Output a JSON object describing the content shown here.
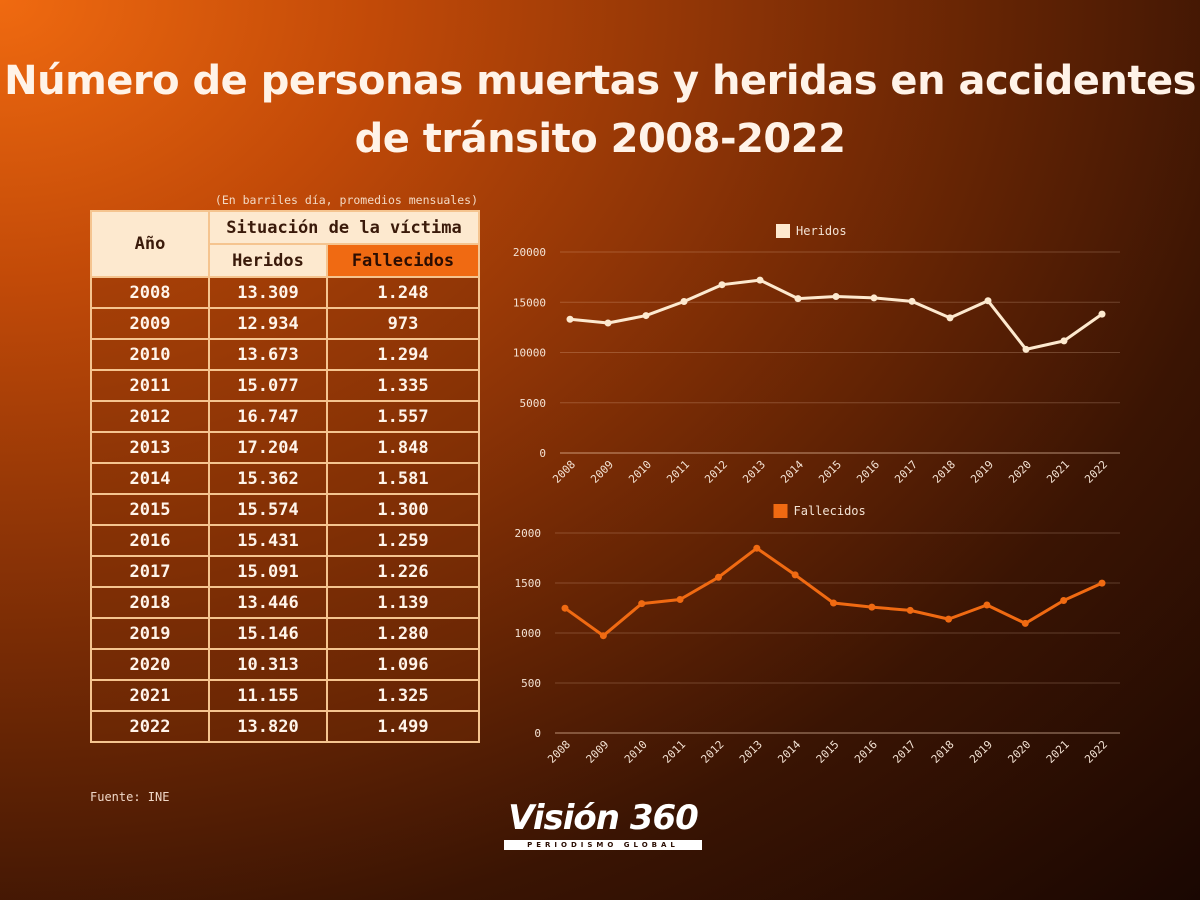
{
  "title": "Número de personas muertas y heridas en accidentes de tránsito 2008-2022",
  "note": "(En barriles día, promedios mensuales)",
  "source": "Fuente: INE",
  "logo": {
    "main": "Visión 360",
    "sub": "PERIODISMO GLOBAL"
  },
  "table": {
    "year_header": "Año",
    "group_header": "Situación de la víctima",
    "col_heridos": "Heridos",
    "col_fallecidos": "Fallecidos",
    "rows": [
      [
        "2008",
        "13.309",
        "1.248"
      ],
      [
        "2009",
        "12.934",
        "973"
      ],
      [
        "2010",
        "13.673",
        "1.294"
      ],
      [
        "2011",
        "15.077",
        "1.335"
      ],
      [
        "2012",
        "16.747",
        "1.557"
      ],
      [
        "2013",
        "17.204",
        "1.848"
      ],
      [
        "2014",
        "15.362",
        "1.581"
      ],
      [
        "2015",
        "15.574",
        "1.300"
      ],
      [
        "2016",
        "15.431",
        "1.259"
      ],
      [
        "2017",
        "15.091",
        "1.226"
      ],
      [
        "2018",
        "13.446",
        "1.139"
      ],
      [
        "2019",
        "15.146",
        "1.280"
      ],
      [
        "2020",
        "10.313",
        "1.096"
      ],
      [
        "2021",
        "11.155",
        "1.325"
      ],
      [
        "2022",
        "13.820",
        "1.499"
      ]
    ]
  },
  "chart_data": [
    {
      "type": "line",
      "series_name": "Heridos",
      "color": "#fde9cf",
      "categories": [
        "2008",
        "2009",
        "2010",
        "2011",
        "2012",
        "2013",
        "2014",
        "2015",
        "2016",
        "2017",
        "2018",
        "2019",
        "2020",
        "2021",
        "2022"
      ],
      "values": [
        13309,
        12934,
        13673,
        15077,
        16747,
        17204,
        15362,
        15574,
        15431,
        15091,
        13446,
        15146,
        10313,
        11155,
        13820
      ],
      "yticks": [
        0,
        5000,
        10000,
        15000,
        20000
      ],
      "ylim": [
        0,
        20000
      ],
      "legend": "top"
    },
    {
      "type": "line",
      "series_name": "Fallecidos",
      "color": "#f06a12",
      "categories": [
        "2008",
        "2009",
        "2010",
        "2011",
        "2012",
        "2013",
        "2014",
        "2015",
        "2016",
        "2017",
        "2018",
        "2019",
        "2020",
        "2021",
        "2022"
      ],
      "values": [
        1248,
        973,
        1294,
        1335,
        1557,
        1848,
        1581,
        1300,
        1259,
        1226,
        1139,
        1280,
        1096,
        1325,
        1499
      ],
      "yticks": [
        0,
        500,
        1000,
        1500,
        2000
      ],
      "ylim": [
        0,
        2000
      ],
      "legend": "top"
    }
  ]
}
